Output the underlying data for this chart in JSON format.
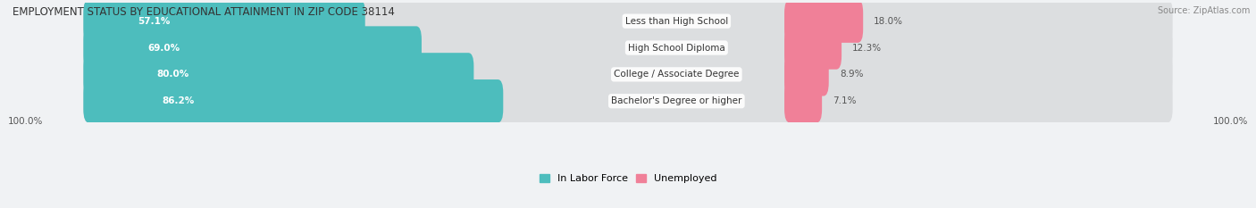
{
  "title": "EMPLOYMENT STATUS BY EDUCATIONAL ATTAINMENT IN ZIP CODE 38114",
  "source": "Source: ZipAtlas.com",
  "categories": [
    "Less than High School",
    "High School Diploma",
    "College / Associate Degree",
    "Bachelor's Degree or higher"
  ],
  "in_labor_force": [
    57.1,
    69.0,
    80.0,
    86.2
  ],
  "unemployed": [
    18.0,
    12.3,
    8.9,
    7.1
  ],
  "labor_color": "#4DBDBD",
  "unemployed_color": "#F08098",
  "bg_color": "#F0F2F4",
  "bar_bg_color": "#DCDEE0",
  "title_color": "#333333",
  "legend_labor": "In Labor Force",
  "legend_unemployed": "Unemployed",
  "x_left_label": "100.0%",
  "x_right_label": "100.0%"
}
